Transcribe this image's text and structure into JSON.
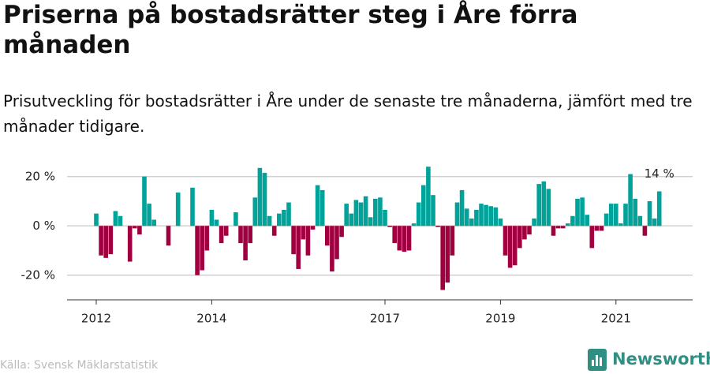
{
  "chart_data": {
    "type": "bar",
    "title": "Priserna på bostadsrätter steg i Åre förra månaden",
    "subtitle": "Prisutveckling för bostadsrätter i Åre under de senaste tre månaderna, jämfört med tre månader tidigare.",
    "source": "Källa: Svensk Mäklarstatistik",
    "logo": "Newsworthy",
    "annotation": "14 %",
    "categories": [
      "2012",
      null,
      null,
      null,
      null,
      null,
      null,
      null,
      null,
      null,
      null,
      null,
      null,
      null,
      null,
      null,
      null,
      null,
      null,
      null,
      null,
      null,
      null,
      null,
      "2014",
      null,
      null,
      null,
      null,
      null,
      null,
      null,
      null,
      null,
      null,
      null,
      null,
      null,
      null,
      null,
      null,
      null,
      null,
      null,
      null,
      null,
      null,
      null,
      null,
      null,
      null,
      null,
      null,
      null,
      null,
      null,
      null,
      null,
      null,
      null,
      "2017",
      null,
      null,
      null,
      null,
      null,
      null,
      null,
      null,
      null,
      null,
      null,
      null,
      null,
      null,
      null,
      null,
      null,
      null,
      null,
      null,
      null,
      null,
      null,
      "2019",
      null,
      null,
      null,
      null,
      null,
      null,
      null,
      null,
      null,
      null,
      null,
      null,
      null,
      null,
      null,
      null,
      null,
      null,
      null,
      null,
      null,
      null,
      null,
      "2021",
      null,
      null,
      null,
      null,
      null,
      null,
      null,
      null,
      null
    ],
    "values": [
      5,
      -12,
      -13,
      -11.5,
      6,
      4,
      0,
      -14.5,
      -1,
      -3.5,
      20,
      9,
      2.5,
      0,
      0,
      -8,
      0,
      13.5,
      0,
      0,
      15.5,
      -20,
      -18,
      -10,
      6.5,
      2.5,
      -7,
      -4,
      0,
      5.5,
      -7,
      -14,
      -7,
      11.5,
      23.5,
      21.5,
      4,
      -4,
      5,
      6.5,
      9.5,
      -11.5,
      -17.5,
      -5.5,
      -12,
      -1.5,
      16.5,
      14.5,
      -8,
      -18.5,
      -13.5,
      -4.5,
      9,
      5,
      10.5,
      9.5,
      12,
      3.5,
      11,
      11.5,
      6.5,
      -0.5,
      -7,
      -10,
      -10.5,
      -10,
      1,
      9.5,
      16.5,
      24,
      12.5,
      -0.5,
      -26,
      -23,
      -12,
      9.5,
      14.5,
      7,
      3,
      6.5,
      9,
      8.5,
      8,
      7.5,
      3,
      -12,
      -17,
      -16,
      -9,
      -5.5,
      -3.5,
      3,
      17,
      18,
      15,
      -4,
      -1,
      -1,
      1,
      4,
      11,
      11.5,
      4.5,
      -9,
      -2,
      -2,
      5,
      9,
      9,
      1,
      9,
      21,
      11,
      4,
      -4,
      10,
      3,
      14
    ],
    "colors": {
      "positive": "#00a39a",
      "negative": "#a0003f"
    },
    "ylim": [
      -30,
      26
    ],
    "yticks": [
      {
        "value": -20,
        "label": "-20 %"
      },
      {
        "value": 0,
        "label": "0 %"
      },
      {
        "value": 20,
        "label": "20 %"
      }
    ],
    "grid": true
  }
}
